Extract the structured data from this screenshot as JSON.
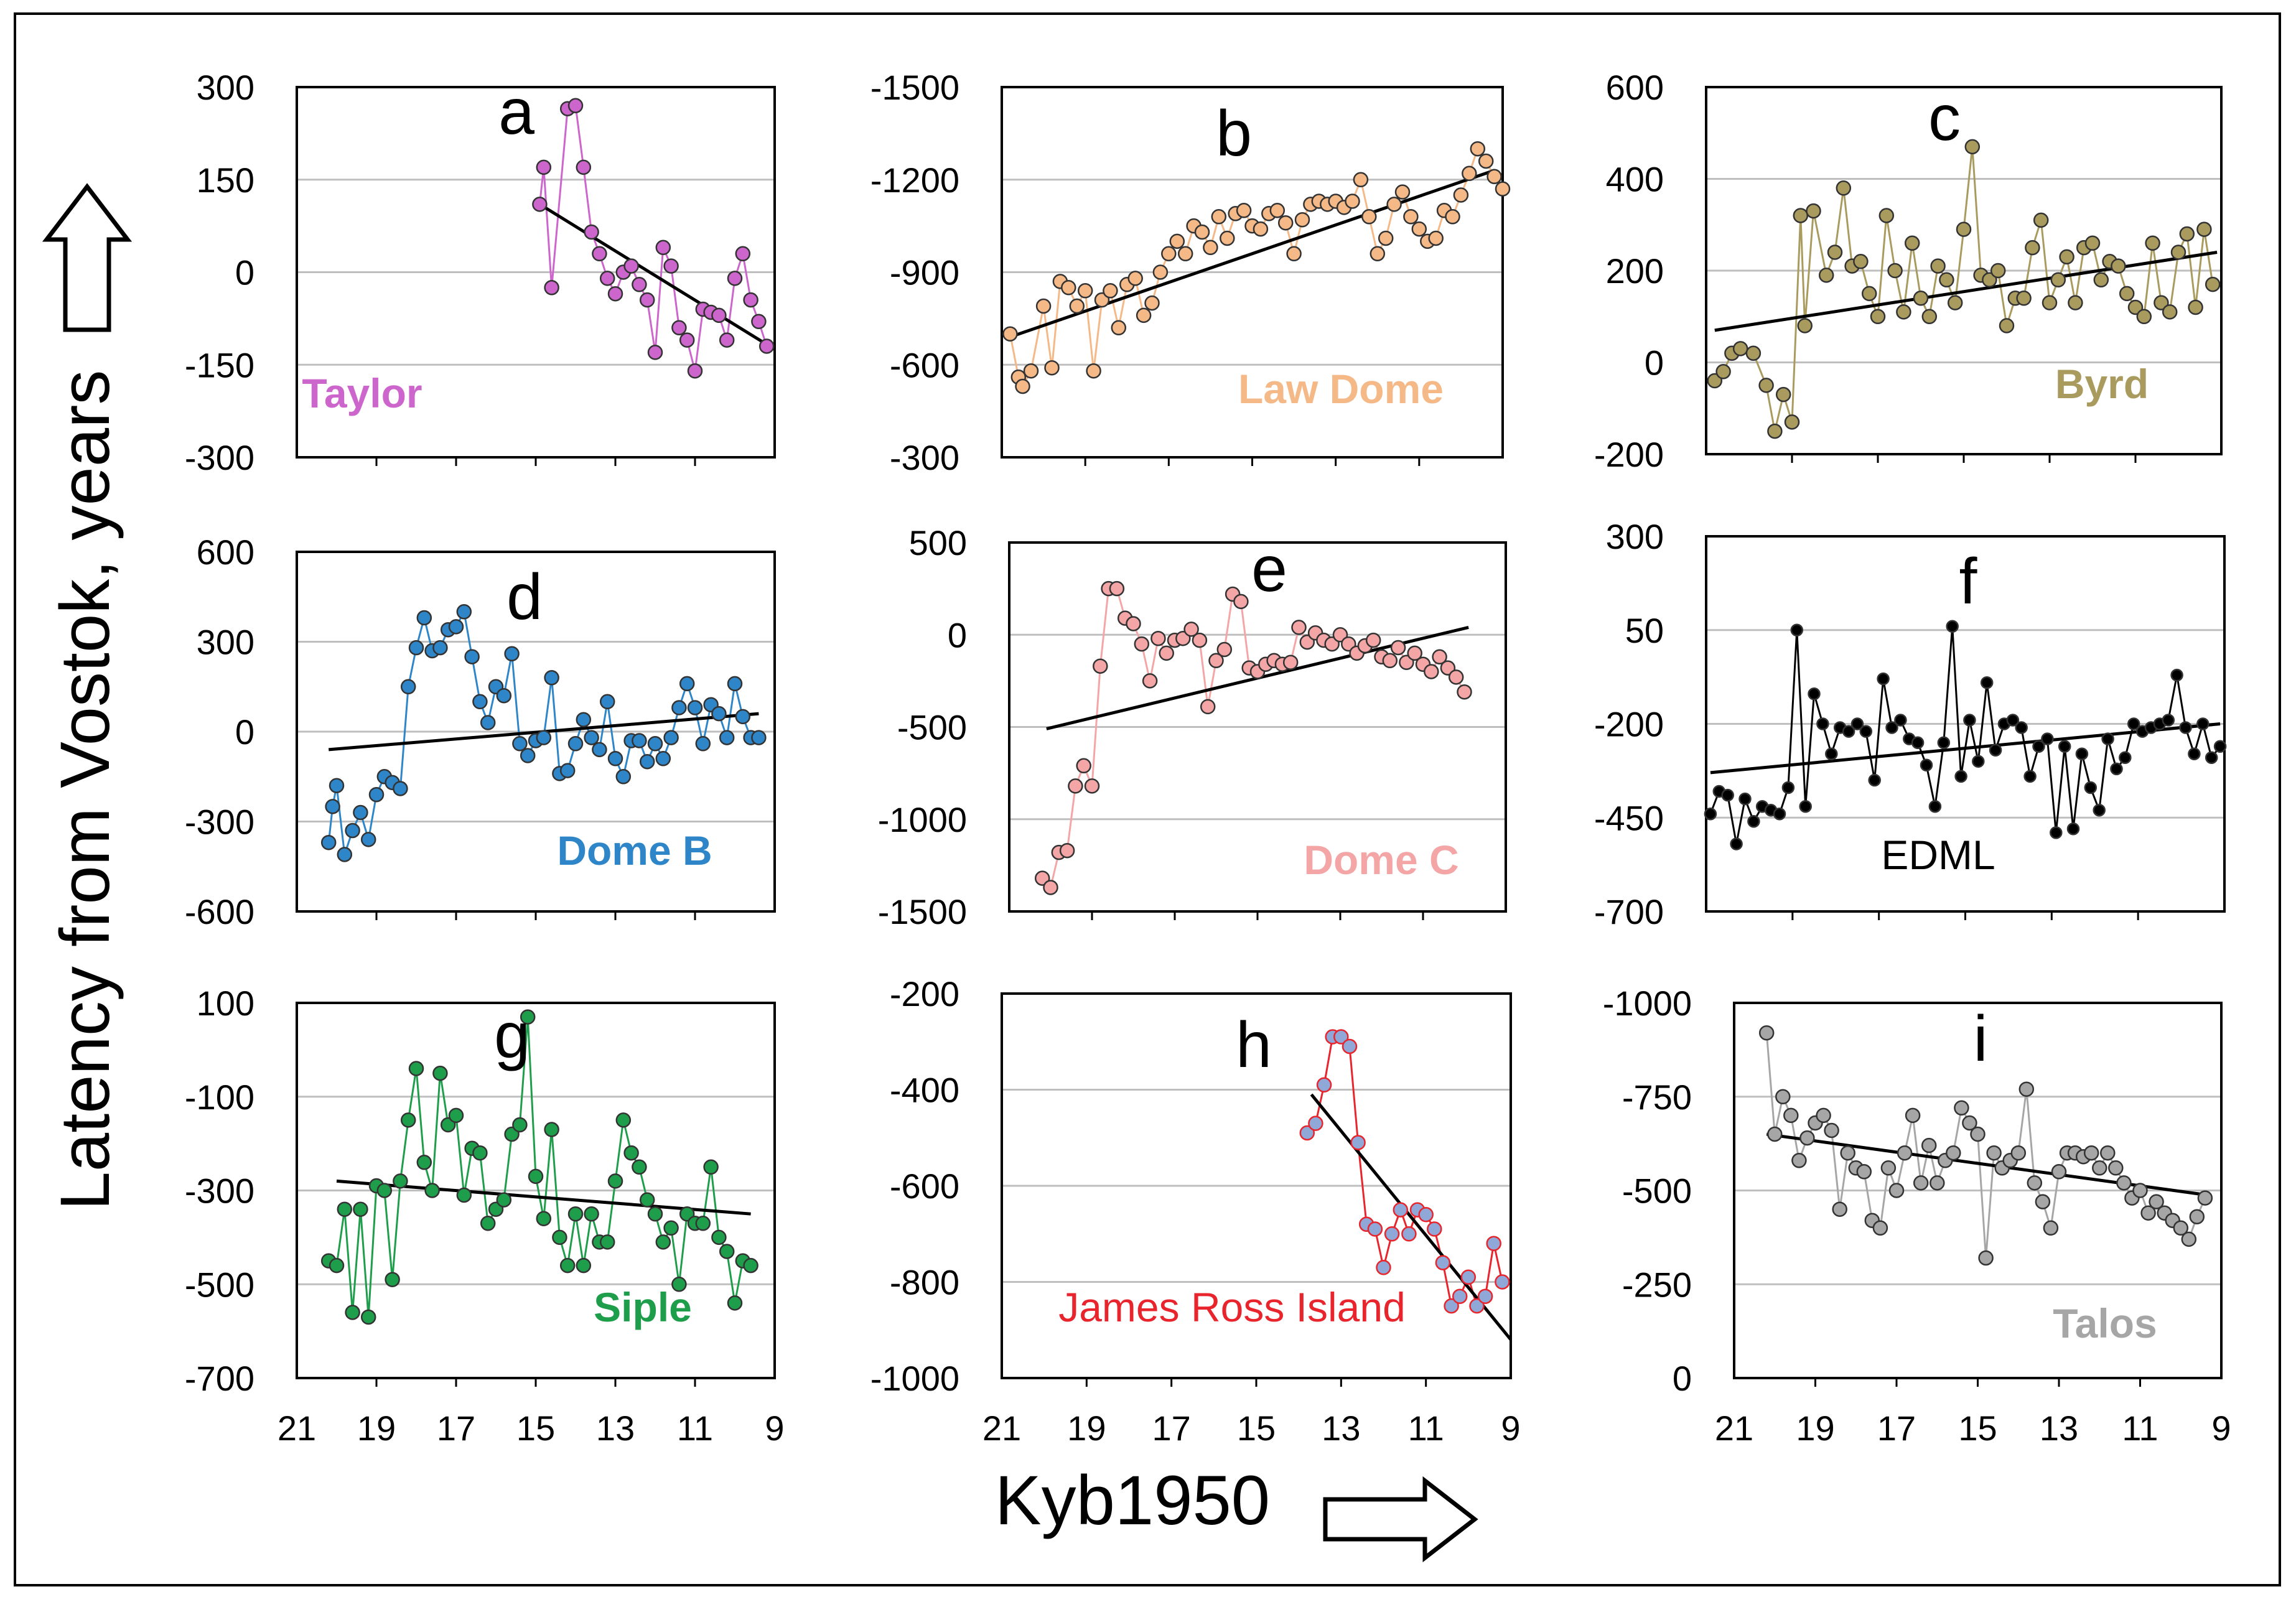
{
  "figure": {
    "ylabel": "Latency from Vostok, years",
    "xlabel": "Kyb1950",
    "x_ticks": [
      "21",
      "19",
      "17",
      "15",
      "13",
      "11",
      "9"
    ]
  },
  "colors": {
    "trend": "#000000",
    "grid": "#bfbfbf",
    "frame": "#000000"
  },
  "chart_data": [
    {
      "type": "scatter",
      "letter": "a",
      "site": "Taylor",
      "color": "#cc66cc",
      "xlim": [
        21,
        9
      ],
      "ylim": [
        -300,
        300
      ],
      "yticks": [
        "300",
        "150",
        "0",
        "-150",
        "-300"
      ],
      "trend": [
        [
          14.9,
          110
        ],
        [
          9.0,
          -125
        ]
      ],
      "x": [
        14.9,
        14.8,
        14.6,
        14.2,
        14.0,
        13.8,
        13.6,
        13.4,
        13.2,
        13.0,
        12.8,
        12.6,
        12.4,
        12.2,
        12.0,
        11.8,
        11.6,
        11.4,
        11.2,
        11.0,
        10.8,
        10.6,
        10.4,
        10.2,
        10.0,
        9.8,
        9.6,
        9.4,
        9.2
      ],
      "y": [
        110,
        170,
        -25,
        265,
        270,
        170,
        65,
        30,
        -10,
        -35,
        0,
        10,
        -20,
        -45,
        -130,
        40,
        10,
        -90,
        -110,
        -160,
        -60,
        -65,
        -70,
        -110,
        -10,
        30,
        -45,
        -80,
        -120
      ]
    },
    {
      "type": "scatter",
      "letter": "b",
      "site": "Law Dome",
      "color": "#f5b887",
      "xlim": [
        21,
        9
      ],
      "ylim": [
        -300,
        -1500
      ],
      "yticks": [
        "-1500",
        "-1200",
        "-900",
        "-600",
        "-300"
      ],
      "trend": [
        [
          20.8,
          -690
        ],
        [
          9.2,
          -1230
        ]
      ],
      "x": [
        20.8,
        20.6,
        20.5,
        20.3,
        20.0,
        19.8,
        19.6,
        19.4,
        19.2,
        19.0,
        18.8,
        18.6,
        18.4,
        18.2,
        18.0,
        17.8,
        17.6,
        17.4,
        17.2,
        17.0,
        16.8,
        16.6,
        16.4,
        16.2,
        16.0,
        15.8,
        15.6,
        15.4,
        15.2,
        15.0,
        14.8,
        14.6,
        14.4,
        14.2,
        14.0,
        13.8,
        13.6,
        13.4,
        13.2,
        13.0,
        12.8,
        12.6,
        12.4,
        12.2,
        12.0,
        11.8,
        11.6,
        11.4,
        11.2,
        11.0,
        10.8,
        10.6,
        10.4,
        10.2,
        10.0,
        9.8,
        9.6,
        9.4,
        9.2,
        9.0
      ],
      "y": [
        -700,
        -560,
        -530,
        -580,
        -790,
        -590,
        -870,
        -850,
        -790,
        -840,
        -580,
        -810,
        -840,
        -720,
        -860,
        -880,
        -760,
        -800,
        -900,
        -960,
        -1000,
        -960,
        -1050,
        -1030,
        -980,
        -1080,
        -1010,
        -1090,
        -1100,
        -1050,
        -1040,
        -1090,
        -1100,
        -1060,
        -960,
        -1070,
        -1120,
        -1130,
        -1120,
        -1130,
        -1110,
        -1130,
        -1200,
        -1080,
        -960,
        -1010,
        -1120,
        -1160,
        -1080,
        -1040,
        -1000,
        -1010,
        -1100,
        -1080,
        -1150,
        -1220,
        -1300,
        -1260,
        -1210,
        -1170
      ]
    },
    {
      "type": "scatter",
      "letter": "c",
      "site": "Byrd",
      "color": "#a99a5e",
      "xlim": [
        21,
        9
      ],
      "ylim": [
        -200,
        600
      ],
      "yticks": [
        "600",
        "400",
        "200",
        "0",
        "-200"
      ],
      "trend": [
        [
          20.8,
          70
        ],
        [
          9.1,
          240
        ]
      ],
      "x": [
        20.8,
        20.6,
        20.4,
        20.2,
        19.9,
        19.6,
        19.4,
        19.2,
        19.0,
        18.8,
        18.7,
        18.5,
        18.2,
        18.0,
        17.8,
        17.6,
        17.4,
        17.2,
        17.0,
        16.8,
        16.6,
        16.4,
        16.2,
        16.0,
        15.8,
        15.6,
        15.4,
        15.2,
        15.0,
        14.8,
        14.6,
        14.4,
        14.2,
        14.0,
        13.8,
        13.6,
        13.4,
        13.2,
        13.0,
        12.8,
        12.6,
        12.4,
        12.2,
        12.0,
        11.8,
        11.6,
        11.4,
        11.2,
        11.0,
        10.8,
        10.6,
        10.4,
        10.2,
        10.0,
        9.8,
        9.6,
        9.4,
        9.2
      ],
      "y": [
        -40,
        -20,
        20,
        30,
        20,
        -50,
        -150,
        -70,
        -130,
        320,
        80,
        330,
        190,
        240,
        380,
        210,
        220,
        150,
        100,
        320,
        200,
        110,
        260,
        140,
        100,
        210,
        180,
        130,
        290,
        470,
        190,
        180,
        200,
        80,
        140,
        140,
        250,
        310,
        130,
        180,
        230,
        130,
        250,
        260,
        180,
        220,
        210,
        150,
        120,
        100,
        260,
        130,
        110,
        240,
        280,
        120,
        290,
        170
      ]
    },
    {
      "type": "scatter",
      "letter": "d",
      "site": "Dome B",
      "color": "#2e86c8",
      "xlim": [
        21,
        9
      ],
      "ylim": [
        -600,
        600
      ],
      "yticks": [
        "600",
        "300",
        "0",
        "-300",
        "-600"
      ],
      "trend": [
        [
          20.2,
          -60
        ],
        [
          9.4,
          60
        ]
      ],
      "x": [
        20.2,
        20.1,
        20.0,
        19.8,
        19.6,
        19.4,
        19.2,
        19.0,
        18.8,
        18.6,
        18.4,
        18.2,
        18.0,
        17.8,
        17.6,
        17.4,
        17.2,
        17.0,
        16.8,
        16.6,
        16.4,
        16.2,
        16.0,
        15.8,
        15.6,
        15.4,
        15.2,
        15.0,
        14.8,
        14.6,
        14.4,
        14.2,
        14.0,
        13.8,
        13.6,
        13.4,
        13.2,
        13.0,
        12.8,
        12.6,
        12.4,
        12.2,
        12.0,
        11.8,
        11.6,
        11.4,
        11.2,
        11.0,
        10.8,
        10.6,
        10.4,
        10.2,
        10.0,
        9.8,
        9.6,
        9.4
      ],
      "y": [
        -370,
        -250,
        -180,
        -410,
        -330,
        -270,
        -360,
        -210,
        -150,
        -170,
        -190,
        150,
        280,
        380,
        270,
        280,
        340,
        350,
        400,
        250,
        100,
        30,
        150,
        120,
        260,
        -40,
        -80,
        -30,
        -20,
        180,
        -140,
        -130,
        -40,
        40,
        -20,
        -60,
        100,
        -90,
        -150,
        -30,
        -30,
        -100,
        -40,
        -90,
        -20,
        80,
        160,
        80,
        -40,
        90,
        60,
        -20,
        160,
        50,
        -20,
        -20
      ]
    },
    {
      "type": "scatter",
      "letter": "e",
      "site": "Dome C",
      "color": "#f4a6a6",
      "xlim": [
        21,
        9
      ],
      "ylim": [
        -1500,
        500
      ],
      "yticks": [
        "500",
        "0",
        "-500",
        "-1000",
        "-1500"
      ],
      "trend": [
        [
          20.1,
          -510
        ],
        [
          9.9,
          40
        ]
      ],
      "x": [
        20.2,
        20.0,
        19.8,
        19.6,
        19.4,
        19.2,
        19.0,
        18.8,
        18.6,
        18.4,
        18.2,
        18.0,
        17.8,
        17.6,
        17.4,
        17.2,
        17.0,
        16.8,
        16.6,
        16.4,
        16.2,
        16.0,
        15.8,
        15.6,
        15.4,
        15.2,
        15.0,
        14.8,
        14.6,
        14.4,
        14.2,
        14.0,
        13.8,
        13.6,
        13.4,
        13.2,
        13.0,
        12.8,
        12.6,
        12.4,
        12.2,
        12.0,
        11.8,
        11.6,
        11.4,
        11.2,
        11.0,
        10.8,
        10.6,
        10.4,
        10.2,
        10.0
      ],
      "y": [
        -1320,
        -1370,
        -1180,
        -1170,
        -820,
        -710,
        -820,
        -170,
        250,
        250,
        90,
        60,
        -50,
        -250,
        -20,
        -100,
        -30,
        -20,
        30,
        -30,
        -390,
        -140,
        -80,
        220,
        180,
        -180,
        -200,
        -160,
        -140,
        -160,
        -150,
        40,
        -40,
        10,
        -30,
        -50,
        0,
        -50,
        -100,
        -60,
        -30,
        -120,
        -140,
        -70,
        -150,
        -100,
        -160,
        -200,
        -120,
        -180,
        -230,
        -310
      ]
    },
    {
      "type": "scatter",
      "letter": "f",
      "site": "EDML",
      "color": "#000000",
      "xlim": [
        21,
        9
      ],
      "ylim": [
        -700,
        300
      ],
      "yticks": [
        "300",
        "50",
        "-200",
        "-450",
        "-700"
      ],
      "trend": [
        [
          20.9,
          -330
        ],
        [
          9.1,
          -200
        ]
      ],
      "x": [
        20.9,
        20.7,
        20.5,
        20.3,
        20.1,
        19.9,
        19.7,
        19.5,
        19.3,
        19.1,
        18.9,
        18.7,
        18.5,
        18.3,
        18.1,
        17.9,
        17.7,
        17.5,
        17.3,
        17.1,
        16.9,
        16.7,
        16.5,
        16.3,
        16.1,
        15.9,
        15.7,
        15.5,
        15.3,
        15.1,
        14.9,
        14.7,
        14.5,
        14.3,
        14.1,
        13.9,
        13.7,
        13.5,
        13.3,
        13.1,
        12.9,
        12.7,
        12.5,
        12.3,
        12.1,
        11.9,
        11.7,
        11.5,
        11.3,
        11.1,
        10.9,
        10.7,
        10.5,
        10.3,
        10.1,
        9.9,
        9.7,
        9.5,
        9.3,
        9.1
      ],
      "y": [
        -440,
        -380,
        -390,
        -520,
        -400,
        -460,
        -420,
        -430,
        -440,
        -370,
        50,
        -420,
        -120,
        -200,
        -280,
        -210,
        -220,
        -200,
        -220,
        -350,
        -80,
        -210,
        -190,
        -240,
        -250,
        -310,
        -420,
        -250,
        60,
        -340,
        -190,
        -300,
        -90,
        -270,
        -200,
        -190,
        -210,
        -340,
        -260,
        -240,
        -490,
        -260,
        -480,
        -280,
        -370,
        -430,
        -240,
        -320,
        -290,
        -200,
        -220,
        -210,
        -200,
        -190,
        -70,
        -210,
        -280,
        -200,
        -290,
        -260
      ]
    },
    {
      "type": "scatter",
      "letter": "g",
      "site": "Siple",
      "color": "#1e9e4a",
      "xlim": [
        21,
        9
      ],
      "ylim": [
        -700,
        100
      ],
      "yticks": [
        "100",
        "-100",
        "-300",
        "-500",
        "-700"
      ],
      "trend": [
        [
          20.0,
          -280
        ],
        [
          9.6,
          -350
        ]
      ],
      "x": [
        20.2,
        20.0,
        19.8,
        19.6,
        19.4,
        19.2,
        19.0,
        18.8,
        18.6,
        18.4,
        18.2,
        18.0,
        17.8,
        17.6,
        17.4,
        17.2,
        17.0,
        16.8,
        16.6,
        16.4,
        16.2,
        16.0,
        15.8,
        15.6,
        15.4,
        15.2,
        15.0,
        14.8,
        14.6,
        14.4,
        14.2,
        14.0,
        13.8,
        13.6,
        13.4,
        13.2,
        13.0,
        12.8,
        12.6,
        12.4,
        12.2,
        12.0,
        11.8,
        11.6,
        11.4,
        11.2,
        11.0,
        10.8,
        10.6,
        10.4,
        10.2,
        10.0,
        9.8,
        9.6
      ],
      "y": [
        -450,
        -460,
        -340,
        -560,
        -340,
        -570,
        -290,
        -300,
        -490,
        -280,
        -150,
        -40,
        -240,
        -300,
        -50,
        -160,
        -140,
        -310,
        -210,
        -220,
        -370,
        -340,
        -320,
        -180,
        -160,
        70,
        -270,
        -360,
        -170,
        -400,
        -460,
        -350,
        -460,
        -350,
        -410,
        -410,
        -280,
        -150,
        -220,
        -250,
        -320,
        -350,
        -410,
        -380,
        -500,
        -350,
        -370,
        -370,
        -250,
        -400,
        -430,
        -540,
        -450,
        -460
      ]
    },
    {
      "type": "scatter",
      "letter": "h",
      "site": "James Ross Island",
      "color": "#e8252c",
      "marker_fill": "#8fa8d8",
      "xlim": [
        21,
        9
      ],
      "ylim": [
        -1000,
        -200
      ],
      "yticks": [
        "-200",
        "-400",
        "-600",
        "-800",
        "-1000"
      ],
      "trend": [
        [
          13.7,
          -410
        ],
        [
          9.0,
          -920
        ]
      ],
      "x": [
        13.8,
        13.6,
        13.4,
        13.2,
        13.0,
        12.8,
        12.6,
        12.4,
        12.2,
        12.0,
        11.8,
        11.6,
        11.4,
        11.2,
        11.0,
        10.8,
        10.6,
        10.4,
        10.2,
        10.0,
        9.8,
        9.6,
        9.4,
        9.2
      ],
      "y": [
        -490,
        -470,
        -390,
        -290,
        -290,
        -310,
        -510,
        -680,
        -690,
        -770,
        -700,
        -650,
        -700,
        -650,
        -660,
        -690,
        -760,
        -850,
        -830,
        -790,
        -850,
        -830,
        -720,
        -800
      ]
    },
    {
      "type": "scatter",
      "letter": "i",
      "site": "Talos",
      "color": "#a6a6a6",
      "xlim": [
        21,
        9
      ],
      "ylim": [
        0,
        -1000
      ],
      "yticks": [
        "-1000",
        "-750",
        "-500",
        "-250",
        "0"
      ],
      "trend": [
        [
          20.2,
          -650
        ],
        [
          9.5,
          -490
        ]
      ],
      "x": [
        20.2,
        20.0,
        19.8,
        19.6,
        19.4,
        19.2,
        19.0,
        18.8,
        18.6,
        18.4,
        18.2,
        18.0,
        17.8,
        17.6,
        17.4,
        17.2,
        17.0,
        16.8,
        16.6,
        16.4,
        16.2,
        16.0,
        15.8,
        15.6,
        15.4,
        15.2,
        15.0,
        14.8,
        14.6,
        14.4,
        14.2,
        14.0,
        13.8,
        13.6,
        13.4,
        13.2,
        13.0,
        12.8,
        12.6,
        12.4,
        12.2,
        12.0,
        11.8,
        11.6,
        11.4,
        11.2,
        11.0,
        10.8,
        10.6,
        10.4,
        10.2,
        10.0,
        9.8,
        9.6,
        9.4
      ],
      "y": [
        -920,
        -650,
        -750,
        -700,
        -580,
        -640,
        -680,
        -700,
        -660,
        -450,
        -600,
        -560,
        -550,
        -420,
        -400,
        -560,
        -500,
        -600,
        -700,
        -520,
        -620,
        -520,
        -580,
        -600,
        -720,
        -680,
        -650,
        -320,
        -600,
        -560,
        -580,
        -600,
        -770,
        -520,
        -470,
        -400,
        -550,
        -600,
        -600,
        -590,
        -600,
        -560,
        -600,
        -560,
        -520,
        -480,
        -500,
        -440,
        -470,
        -440,
        -420,
        -400,
        -370,
        -430,
        -480
      ]
    }
  ]
}
